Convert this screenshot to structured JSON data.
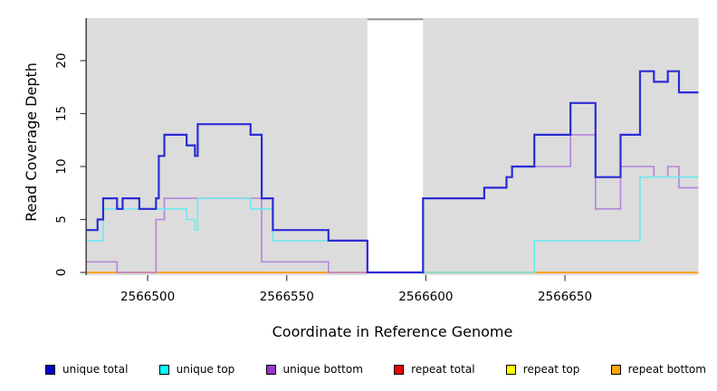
{
  "figure": {
    "background": "#ffffff",
    "panel_color": "#dcdcdc",
    "masked_band_color": "#ffffff",
    "masked_band_top_line_color": "#8c8c8c",
    "axis_color": "#404040",
    "text_color": "#000000"
  },
  "chart_data": {
    "type": "line",
    "subtype": "step",
    "title": "",
    "xlabel": "Coordinate in Reference Genome",
    "ylabel": "Read Coverage Depth",
    "xlim": [
      2566478,
      2566698
    ],
    "ylim": [
      0,
      24
    ],
    "x_ticks": [
      2566500,
      2566550,
      2566600,
      2566650
    ],
    "y_ticks": [
      0,
      5,
      10,
      15,
      20
    ],
    "grid": false,
    "legend_position": "bottom",
    "masked_region": {
      "x_start": 2566579,
      "x_end": 2566599
    },
    "x_end": 2566698,
    "draw_order": [
      "repeat total",
      "repeat top",
      "repeat bottom",
      "unique bottom",
      "unique top",
      "unique total"
    ],
    "series": [
      {
        "name": "unique total",
        "legend_color": "#0000cc",
        "line_color": "#2b2bd5",
        "line_width": 2.2,
        "steps": [
          [
            2566478,
            4
          ],
          [
            2566482,
            5
          ],
          [
            2566484,
            7
          ],
          [
            2566489,
            6
          ],
          [
            2566491,
            7
          ],
          [
            2566497,
            6
          ],
          [
            2566503,
            7
          ],
          [
            2566504,
            11
          ],
          [
            2566506,
            13
          ],
          [
            2566514,
            12
          ],
          [
            2566517,
            11
          ],
          [
            2566518,
            14
          ],
          [
            2566537,
            13
          ],
          [
            2566541,
            7
          ],
          [
            2566545,
            4
          ],
          [
            2566565,
            3
          ],
          [
            2566579,
            0
          ],
          [
            2566599,
            7
          ],
          [
            2566621,
            8
          ],
          [
            2566629,
            9
          ],
          [
            2566631,
            10
          ],
          [
            2566639,
            13
          ],
          [
            2566652,
            16
          ],
          [
            2566661,
            9
          ],
          [
            2566670,
            13
          ],
          [
            2566677,
            19
          ],
          [
            2566682,
            18
          ],
          [
            2566687,
            19
          ],
          [
            2566691,
            17
          ]
        ]
      },
      {
        "name": "unique top",
        "legend_color": "#00ffff",
        "line_color": "#70e8f0",
        "line_width": 1.6,
        "steps": [
          [
            2566478,
            3
          ],
          [
            2566484,
            6
          ],
          [
            2566514,
            5
          ],
          [
            2566517,
            4
          ],
          [
            2566518,
            7
          ],
          [
            2566537,
            6
          ],
          [
            2566545,
            3
          ],
          [
            2566579,
            0
          ],
          [
            2566639,
            3
          ],
          [
            2566677,
            9
          ]
        ]
      },
      {
        "name": "unique bottom",
        "legend_color": "#9933cc",
        "line_color": "#b584dc",
        "line_width": 1.6,
        "steps": [
          [
            2566478,
            1
          ],
          [
            2566489,
            0
          ],
          [
            2566503,
            5
          ],
          [
            2566506,
            7
          ],
          [
            2566541,
            1
          ],
          [
            2566565,
            0
          ],
          [
            2566599,
            7
          ],
          [
            2566621,
            8
          ],
          [
            2566629,
            9
          ],
          [
            2566631,
            10
          ],
          [
            2566652,
            13
          ],
          [
            2566661,
            6
          ],
          [
            2566670,
            10
          ],
          [
            2566682,
            9
          ],
          [
            2566687,
            10
          ],
          [
            2566691,
            8
          ]
        ]
      },
      {
        "name": "repeat total",
        "legend_color": "#ee0000",
        "line_color": "#e02020",
        "line_width": 1.6,
        "steps": [
          [
            2566478,
            0
          ]
        ]
      },
      {
        "name": "repeat top",
        "legend_color": "#ffff00",
        "line_color": "#f5f04a",
        "line_width": 1.6,
        "steps": [
          [
            2566478,
            0
          ]
        ]
      },
      {
        "name": "repeat bottom",
        "legend_color": "#ffa500",
        "line_color": "#ffa41e",
        "line_width": 2,
        "steps": [
          [
            2566478,
            0
          ]
        ]
      }
    ]
  }
}
